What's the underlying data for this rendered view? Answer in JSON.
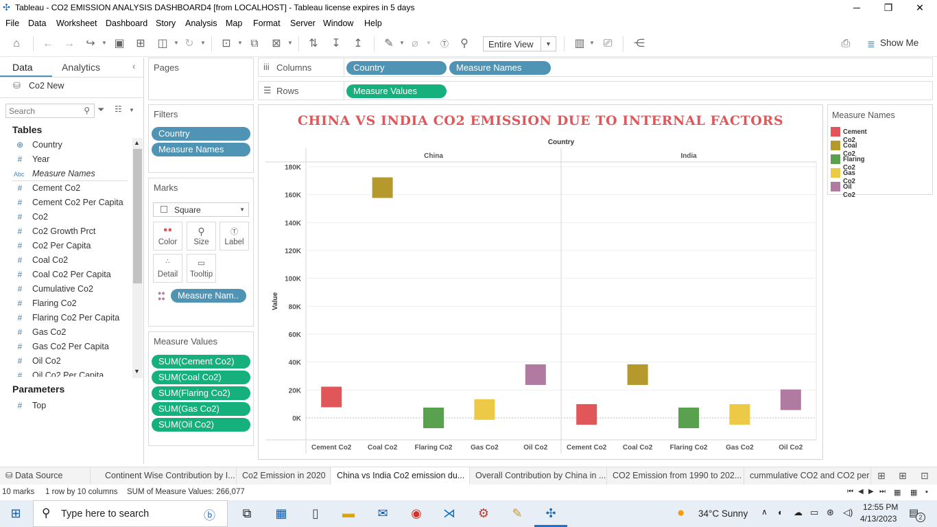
{
  "window": {
    "title": "Tableau - CO2 EMISSION ANALYSIS DASHBOARD4 [from LOCALHOST] - Tableau license expires in 5 days",
    "minimize": "─",
    "restore": "❐",
    "close": "✕"
  },
  "menu": [
    "File",
    "Data",
    "Worksheet",
    "Dashboard",
    "Story",
    "Analysis",
    "Map",
    "Format",
    "Server",
    "Window",
    "Help"
  ],
  "toolbar": {
    "view_mode": "Entire View",
    "show_me": "Show Me"
  },
  "datapane": {
    "tab_data": "Data",
    "tab_analytics": "Analytics",
    "datasource": "Co2 New",
    "search_placeholder": "Search",
    "tables_header": "Tables",
    "fields": [
      {
        "icon": "⊕",
        "name": "Country"
      },
      {
        "icon": "#",
        "name": "Year"
      },
      {
        "icon": "Abc",
        "name": "Measure Names"
      },
      {
        "icon": "#",
        "name": "Cement Co2"
      },
      {
        "icon": "#",
        "name": "Cement Co2 Per Capita"
      },
      {
        "icon": "#",
        "name": "Co2"
      },
      {
        "icon": "#",
        "name": "Co2 Growth Prct"
      },
      {
        "icon": "#",
        "name": "Co2 Per Capita"
      },
      {
        "icon": "#",
        "name": "Coal Co2"
      },
      {
        "icon": "#",
        "name": "Coal Co2 Per Capita"
      },
      {
        "icon": "#",
        "name": "Cumulative Co2"
      },
      {
        "icon": "#",
        "name": "Flaring Co2"
      },
      {
        "icon": "#",
        "name": "Flaring Co2 Per Capita"
      },
      {
        "icon": "#",
        "name": "Gas Co2"
      },
      {
        "icon": "#",
        "name": "Gas Co2 Per Capita"
      },
      {
        "icon": "#",
        "name": "Oil Co2"
      },
      {
        "icon": "#",
        "name": "Oil Co2 Per Capita"
      }
    ],
    "parameters_header": "Parameters",
    "parameters": [
      {
        "icon": "#",
        "name": "Top"
      }
    ]
  },
  "shelves": {
    "pages": "Pages",
    "columns_label": "Columns",
    "columns": [
      "Country",
      "Measure Names"
    ],
    "rows_label": "Rows",
    "rows": [
      "Measure Values"
    ],
    "filters_title": "Filters",
    "filters": [
      "Country",
      "Measure Names"
    ],
    "marks_title": "Marks",
    "mark_type": "Square",
    "mark_buttons": [
      "Color",
      "Size",
      "Label",
      "Detail",
      "Tooltip"
    ],
    "marks_pill": "Measure Nam..",
    "measure_values_title": "Measure Values",
    "measure_values": [
      "SUM(Cement Co2)",
      "SUM(Coal Co2)",
      "SUM(Flaring Co2)",
      "SUM(Gas Co2)",
      "SUM(Oil Co2)"
    ]
  },
  "legend": {
    "title": "Measure Names",
    "items": [
      {
        "name": "Cement Co2",
        "color": "#e15759"
      },
      {
        "name": "Coal Co2",
        "color": "#b6992d"
      },
      {
        "name": "Flaring Co2",
        "color": "#59a14f"
      },
      {
        "name": "Gas Co2",
        "color": "#edc948"
      },
      {
        "name": "Oil Co2",
        "color": "#b07aa1"
      }
    ]
  },
  "chart_data": {
    "type": "scatter",
    "title": "CHINA VS INDIA CO2 EMISSION DUE TO INTERNAL FACTORS",
    "header": "Country",
    "ylabel": "Value",
    "ylim": [
      -10000,
      180000
    ],
    "yticks": [
      0,
      20000,
      40000,
      60000,
      80000,
      100000,
      120000,
      140000,
      160000,
      180000
    ],
    "ytick_labels": [
      "0K",
      "20K",
      "40K",
      "60K",
      "80K",
      "100K",
      "120K",
      "140K",
      "160K",
      "180K"
    ],
    "panes": [
      {
        "country": "China",
        "categories": [
          "Cement Co2",
          "Coal Co2",
          "Flaring Co2",
          "Gas Co2",
          "Oil Co2"
        ],
        "values": [
          15000,
          165000,
          0,
          6000,
          31000
        ]
      },
      {
        "country": "India",
        "categories": [
          "Cement Co2",
          "Coal Co2",
          "Flaring Co2",
          "Gas Co2",
          "Oil Co2"
        ],
        "values": [
          2500,
          31000,
          0,
          2500,
          13000
        ]
      }
    ],
    "colors": [
      "#e15759",
      "#b6992d",
      "#59a14f",
      "#edc948",
      "#b07aa1"
    ],
    "grid": true
  },
  "sheet_tabs": [
    {
      "label": "Data Source",
      "active": false
    },
    {
      "label": "Continent Wise Contribution by I...",
      "active": false
    },
    {
      "label": "Co2 Emission in 2020",
      "active": false
    },
    {
      "label": "China vs India Co2 emission du...",
      "active": true
    },
    {
      "label": "Overall Contribution by China in ...",
      "active": false
    },
    {
      "label": "CO2 Emission from 1990 to 202...",
      "active": false
    },
    {
      "label": "cummulative CO2 and CO2 per ...",
      "active": false
    }
  ],
  "status": {
    "marks": "10 marks",
    "dims": "1 row by 10 columns",
    "sum": "SUM of Measure Values: 266,077"
  },
  "taskbar": {
    "search_placeholder": "Type here to search",
    "weather": "34°C  Sunny",
    "time": "12:55 PM",
    "date": "4/13/2023",
    "notifications": "2"
  }
}
